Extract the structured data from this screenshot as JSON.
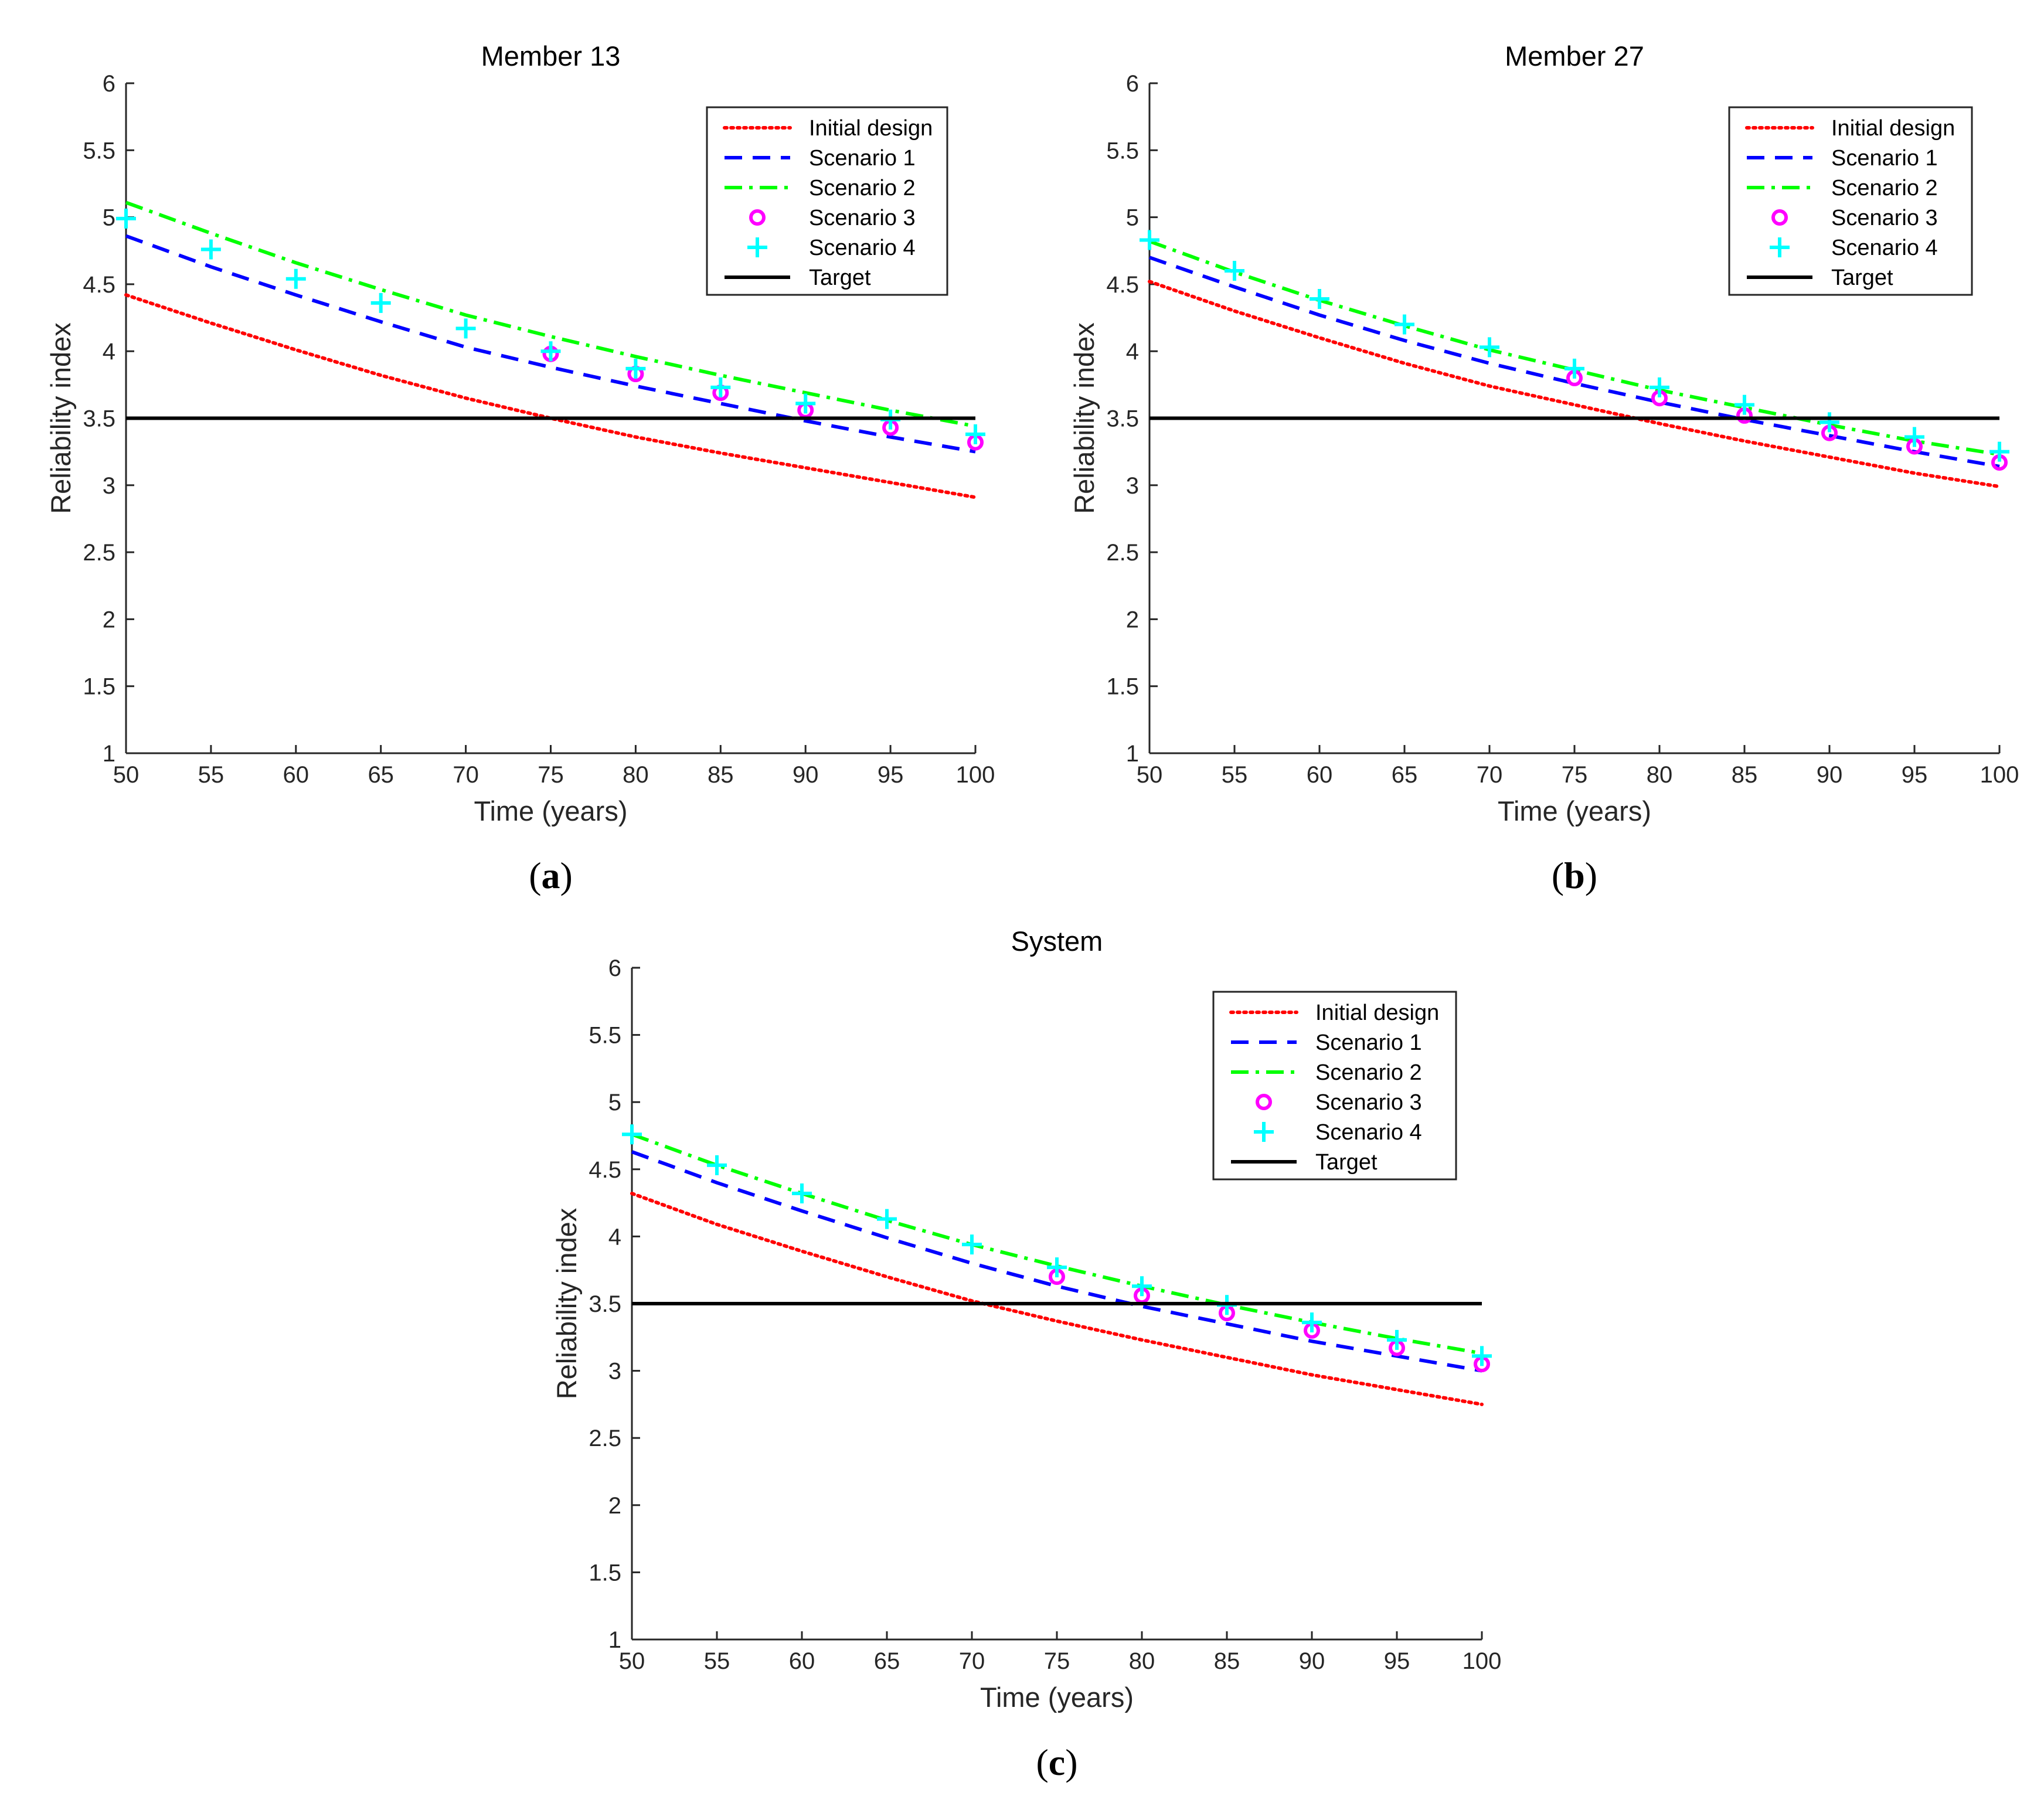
{
  "colors": {
    "initial": "#ff0000",
    "scenario1": "#0000ff",
    "scenario2": "#00ff00",
    "scenario3": "#ff00ff",
    "scenario4": "#00ffff",
    "target": "#000000"
  },
  "chart_data": [
    {
      "type": "line",
      "id": "a",
      "title": "Member 13",
      "caption": "(a)",
      "caption_letter": "a",
      "xlabel": "Time (years)",
      "ylabel": "Reliability index",
      "xlim": [
        50,
        100
      ],
      "ylim": [
        1,
        6
      ],
      "xticks": [
        50,
        55,
        60,
        65,
        70,
        75,
        80,
        85,
        90,
        95,
        100
      ],
      "yticks": [
        1,
        1.5,
        2,
        2.5,
        3,
        3.5,
        4,
        4.5,
        5,
        5.5,
        6
      ],
      "grid": false,
      "legend_position": "top-right",
      "x": [
        50,
        55,
        60,
        65,
        70,
        75,
        80,
        85,
        90,
        95,
        100
      ],
      "series": [
        {
          "name": "Initial design",
          "style": "dotted",
          "color": "#ff0000",
          "values": [
            4.42,
            4.21,
            4.01,
            3.82,
            3.65,
            3.5,
            3.36,
            3.24,
            3.13,
            3.02,
            2.91
          ]
        },
        {
          "name": "Scenario 1",
          "style": "dashed",
          "color": "#0000ff",
          "values": [
            4.86,
            4.63,
            4.42,
            4.22,
            4.03,
            3.88,
            3.74,
            3.61,
            3.48,
            3.36,
            3.25
          ]
        },
        {
          "name": "Scenario 2",
          "style": "dashdot",
          "color": "#00ff00",
          "values": [
            5.11,
            4.88,
            4.66,
            4.46,
            4.27,
            4.11,
            3.96,
            3.82,
            3.69,
            3.56,
            3.44
          ]
        },
        {
          "name": "Scenario 3",
          "style": "circle",
          "color": "#ff00ff",
          "x": [
            75,
            80,
            85,
            90,
            95,
            100
          ],
          "values": [
            3.98,
            3.83,
            3.69,
            3.56,
            3.43,
            3.32
          ]
        },
        {
          "name": "Scenario 4",
          "style": "plus",
          "color": "#00ffff",
          "values": [
            4.99,
            4.76,
            4.54,
            4.36,
            4.17,
            4.0,
            3.87,
            3.73,
            3.61,
            3.49,
            3.38
          ]
        },
        {
          "name": "Target",
          "style": "solid",
          "color": "#000000",
          "values": [
            3.5,
            3.5,
            3.5,
            3.5,
            3.5,
            3.5,
            3.5,
            3.5,
            3.5,
            3.5,
            3.5
          ]
        }
      ]
    },
    {
      "type": "line",
      "id": "b",
      "title": "Member 27",
      "caption": "(b)",
      "caption_letter": "b",
      "xlabel": "Time (years)",
      "ylabel": "Reliability index",
      "xlim": [
        50,
        100
      ],
      "ylim": [
        1,
        6
      ],
      "xticks": [
        50,
        55,
        60,
        65,
        70,
        75,
        80,
        85,
        90,
        95,
        100
      ],
      "yticks": [
        1,
        1.5,
        2,
        2.5,
        3,
        3.5,
        4,
        4.5,
        5,
        5.5,
        6
      ],
      "grid": false,
      "legend_position": "top-right",
      "x": [
        50,
        55,
        60,
        65,
        70,
        75,
        80,
        85,
        90,
        95,
        100
      ],
      "series": [
        {
          "name": "Initial design",
          "style": "dotted",
          "color": "#ff0000",
          "values": [
            4.52,
            4.3,
            4.1,
            3.91,
            3.74,
            3.6,
            3.46,
            3.33,
            3.21,
            3.09,
            2.99
          ]
        },
        {
          "name": "Scenario 1",
          "style": "dashed",
          "color": "#0000ff",
          "values": [
            4.7,
            4.48,
            4.27,
            4.08,
            3.91,
            3.76,
            3.62,
            3.49,
            3.37,
            3.25,
            3.14
          ]
        },
        {
          "name": "Scenario 2",
          "style": "dashdot",
          "color": "#00ff00",
          "values": [
            4.82,
            4.59,
            4.38,
            4.19,
            4.01,
            3.86,
            3.71,
            3.58,
            3.45,
            3.33,
            3.23
          ]
        },
        {
          "name": "Scenario 3",
          "style": "circle",
          "color": "#ff00ff",
          "x": [
            75,
            80,
            85,
            90,
            95,
            100
          ],
          "values": [
            3.8,
            3.65,
            3.52,
            3.39,
            3.29,
            3.17
          ]
        },
        {
          "name": "Scenario 4",
          "style": "plus",
          "color": "#00ffff",
          "values": [
            4.83,
            4.6,
            4.39,
            4.2,
            4.03,
            3.87,
            3.73,
            3.6,
            3.47,
            3.36,
            3.25
          ]
        },
        {
          "name": "Target",
          "style": "solid",
          "color": "#000000",
          "values": [
            3.5,
            3.5,
            3.5,
            3.5,
            3.5,
            3.5,
            3.5,
            3.5,
            3.5,
            3.5,
            3.5
          ]
        }
      ]
    },
    {
      "type": "line",
      "id": "c",
      "title": "System",
      "caption": "(c)",
      "caption_letter": "c",
      "xlabel": "Time (years)",
      "ylabel": "Reliability index",
      "xlim": [
        50,
        100
      ],
      "ylim": [
        1,
        6
      ],
      "xticks": [
        50,
        55,
        60,
        65,
        70,
        75,
        80,
        85,
        90,
        95,
        100
      ],
      "yticks": [
        1,
        1.5,
        2,
        2.5,
        3,
        3.5,
        4,
        4.5,
        5,
        5.5,
        6
      ],
      "grid": false,
      "legend_position": "top-right",
      "x": [
        50,
        55,
        60,
        65,
        70,
        75,
        80,
        85,
        90,
        95,
        100
      ],
      "series": [
        {
          "name": "Initial design",
          "style": "dotted",
          "color": "#ff0000",
          "values": [
            4.32,
            4.09,
            3.89,
            3.7,
            3.52,
            3.37,
            3.23,
            3.1,
            2.97,
            2.86,
            2.75
          ]
        },
        {
          "name": "Scenario 1",
          "style": "dashed",
          "color": "#0000ff",
          "values": [
            4.63,
            4.4,
            4.19,
            3.99,
            3.8,
            3.63,
            3.48,
            3.35,
            3.22,
            3.11,
            3.0
          ]
        },
        {
          "name": "Scenario 2",
          "style": "dashdot",
          "color": "#00ff00",
          "values": [
            4.76,
            4.53,
            4.32,
            4.12,
            3.94,
            3.78,
            3.63,
            3.49,
            3.36,
            3.24,
            3.13
          ]
        },
        {
          "name": "Scenario 3",
          "style": "circle",
          "color": "#ff00ff",
          "x": [
            75,
            80,
            85,
            90,
            95,
            100
          ],
          "values": [
            3.7,
            3.56,
            3.43,
            3.3,
            3.17,
            3.05
          ]
        },
        {
          "name": "Scenario 4",
          "style": "plus",
          "color": "#00ffff",
          "values": [
            4.76,
            4.53,
            4.32,
            4.13,
            3.94,
            3.77,
            3.63,
            3.49,
            3.36,
            3.23,
            3.11
          ]
        },
        {
          "name": "Target",
          "style": "solid",
          "color": "#000000",
          "values": [
            3.5,
            3.5,
            3.5,
            3.5,
            3.5,
            3.5,
            3.5,
            3.5,
            3.5,
            3.5,
            3.5
          ]
        }
      ]
    }
  ]
}
